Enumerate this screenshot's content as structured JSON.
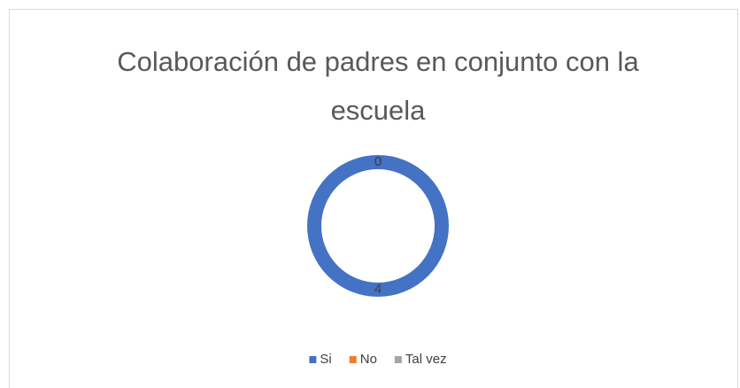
{
  "chart_data": {
    "type": "donut",
    "title": "Colaboración de padres en conjunto con la escuela",
    "categories": [
      "Si",
      "No",
      "Tal vez"
    ],
    "values": [
      4,
      0,
      0
    ],
    "colors": [
      "#4472c4",
      "#ed7d31",
      "#a5a5a5"
    ],
    "legend": "bottom"
  }
}
